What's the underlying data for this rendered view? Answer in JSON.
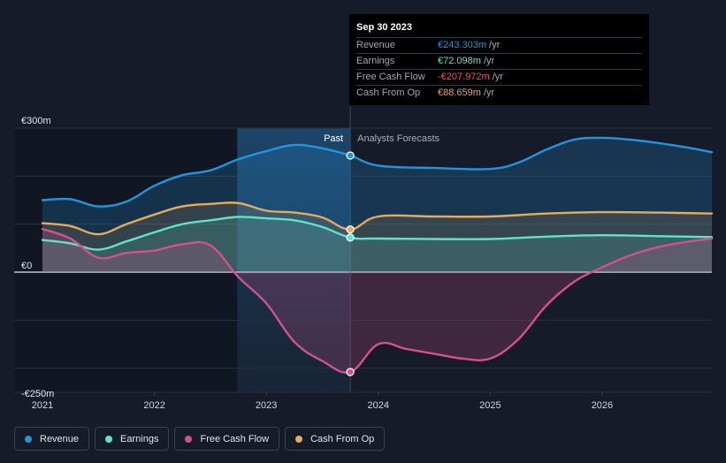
{
  "colors": {
    "revenue": "#2394df",
    "earnings": "#5ee4c8",
    "fcf": "#d4508f",
    "cfo": "#e8ab5c",
    "background": "#151b28"
  },
  "tooltip": {
    "date": "Sep 30 2023",
    "rows": [
      {
        "name": "Revenue",
        "value": "€243.303m",
        "unit": "/yr",
        "color": "#2394df"
      },
      {
        "name": "Earnings",
        "value": "€72.098m",
        "unit": "/yr",
        "color": "#5ee4c8"
      },
      {
        "name": "Free Cash Flow",
        "value": "-€207.972m",
        "unit": "/yr",
        "color": "#ff4d5e"
      },
      {
        "name": "Cash From Op",
        "value": "€88.659m",
        "unit": "/yr",
        "color": "#e8ab5c"
      }
    ]
  },
  "legend": [
    {
      "name": "Revenue",
      "color": "#2394df"
    },
    {
      "name": "Earnings",
      "color": "#5ee4c8"
    },
    {
      "name": "Free Cash Flow",
      "color": "#d4508f"
    },
    {
      "name": "Cash From Op",
      "color": "#e8ab5c"
    }
  ],
  "chart_data": {
    "type": "line",
    "y_labels": [
      {
        "value": 300,
        "text": "€300m"
      },
      {
        "value": 0,
        "text": "€0"
      },
      {
        "value": -250,
        "text": "-€250m"
      }
    ],
    "ylim": [
      -250,
      300
    ],
    "xlim": [
      2021.0,
      2026.98
    ],
    "x_ticks": [
      {
        "value": 2021,
        "text": "2021"
      },
      {
        "value": 2022,
        "text": "2022"
      },
      {
        "value": 2023,
        "text": "2023"
      },
      {
        "value": 2024,
        "text": "2024"
      },
      {
        "value": 2025,
        "text": "2025"
      },
      {
        "value": 2026,
        "text": "2026"
      }
    ],
    "past_label": "Past",
    "forecast_label": "Analysts Forecasts",
    "past_start": 2022.74,
    "divider_x": 2023.75,
    "series": [
      {
        "name": "Revenue",
        "key": "revenue",
        "points": [
          [
            2021.0,
            150
          ],
          [
            2021.25,
            152
          ],
          [
            2021.5,
            137
          ],
          [
            2021.75,
            147
          ],
          [
            2022.0,
            180
          ],
          [
            2022.25,
            202
          ],
          [
            2022.5,
            212
          ],
          [
            2022.75,
            235
          ],
          [
            2023.0,
            252
          ],
          [
            2023.25,
            265
          ],
          [
            2023.5,
            258
          ],
          [
            2023.75,
            243
          ],
          [
            2024.0,
            222
          ],
          [
            2024.5,
            217
          ],
          [
            2025.0,
            215
          ],
          [
            2025.25,
            228
          ],
          [
            2025.5,
            255
          ],
          [
            2025.75,
            276
          ],
          [
            2026.0,
            280
          ],
          [
            2026.25,
            276
          ],
          [
            2026.5,
            269
          ],
          [
            2026.75,
            260
          ],
          [
            2026.98,
            250
          ]
        ]
      },
      {
        "name": "Cash From Op",
        "key": "cfo",
        "points": [
          [
            2021.0,
            102
          ],
          [
            2021.25,
            96
          ],
          [
            2021.5,
            79
          ],
          [
            2021.75,
            100
          ],
          [
            2022.0,
            120
          ],
          [
            2022.25,
            137
          ],
          [
            2022.5,
            142
          ],
          [
            2022.75,
            144
          ],
          [
            2023.0,
            128
          ],
          [
            2023.25,
            124
          ],
          [
            2023.5,
            114
          ],
          [
            2023.75,
            89
          ],
          [
            2024.0,
            116
          ],
          [
            2024.5,
            116
          ],
          [
            2025.0,
            116
          ],
          [
            2025.5,
            122
          ],
          [
            2026.0,
            125
          ],
          [
            2026.5,
            124
          ],
          [
            2026.98,
            122
          ]
        ]
      },
      {
        "name": "Earnings",
        "key": "earnings",
        "points": [
          [
            2021.0,
            67
          ],
          [
            2021.25,
            60
          ],
          [
            2021.5,
            47
          ],
          [
            2021.75,
            64
          ],
          [
            2022.0,
            83
          ],
          [
            2022.25,
            100
          ],
          [
            2022.5,
            108
          ],
          [
            2022.75,
            115
          ],
          [
            2023.0,
            112
          ],
          [
            2023.25,
            108
          ],
          [
            2023.5,
            94
          ],
          [
            2023.75,
            72
          ],
          [
            2024.0,
            70
          ],
          [
            2024.5,
            69
          ],
          [
            2025.0,
            69
          ],
          [
            2025.5,
            74
          ],
          [
            2026.0,
            77
          ],
          [
            2026.5,
            75
          ],
          [
            2026.98,
            73
          ]
        ]
      },
      {
        "name": "Free Cash Flow",
        "key": "fcf",
        "points": [
          [
            2021.0,
            90
          ],
          [
            2021.25,
            70
          ],
          [
            2021.5,
            30
          ],
          [
            2021.75,
            40
          ],
          [
            2022.0,
            45
          ],
          [
            2022.25,
            58
          ],
          [
            2022.5,
            56
          ],
          [
            2022.75,
            -10
          ],
          [
            2023.0,
            -65
          ],
          [
            2023.25,
            -145
          ],
          [
            2023.5,
            -185
          ],
          [
            2023.75,
            -208
          ],
          [
            2024.0,
            -150
          ],
          [
            2024.25,
            -160
          ],
          [
            2024.5,
            -170
          ],
          [
            2024.75,
            -180
          ],
          [
            2025.0,
            -180
          ],
          [
            2025.25,
            -140
          ],
          [
            2025.5,
            -70
          ],
          [
            2025.75,
            -20
          ],
          [
            2026.0,
            10
          ],
          [
            2026.25,
            35
          ],
          [
            2026.5,
            52
          ],
          [
            2026.75,
            63
          ],
          [
            2026.98,
            70
          ]
        ]
      }
    ]
  }
}
